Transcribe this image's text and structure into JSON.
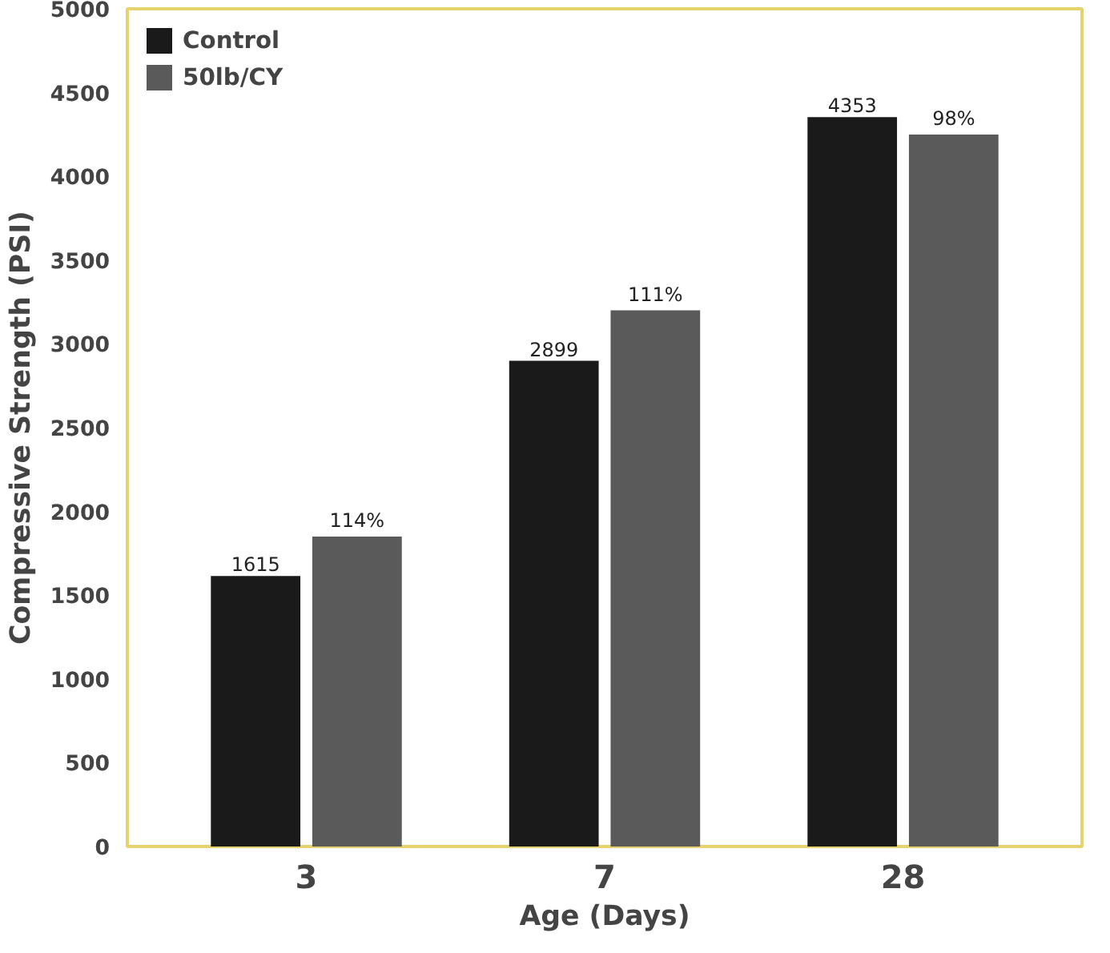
{
  "chart_data": {
    "type": "bar",
    "xlabel": "Age (Days)",
    "ylabel": "Compressive Strength (PSI)",
    "categories": [
      "3",
      "7",
      "28"
    ],
    "series": [
      {
        "name": "Control",
        "color": "#1a1a1a",
        "values": [
          1615,
          2899,
          4353
        ],
        "value_labels": [
          "1615",
          "2899",
          "4353"
        ]
      },
      {
        "name": "50lb/CY",
        "color": "#5a5a5a",
        "values": [
          1850,
          3200,
          4250
        ]
      }
    ],
    "annotations": [
      {
        "text": "114%",
        "x": "3",
        "y": 1850
      },
      {
        "text": "111%",
        "x": "7",
        "y": 3200
      },
      {
        "text": "98%",
        "x": "28",
        "y": 4250
      }
    ],
    "ylim": [
      0,
      5000
    ],
    "yticks": [
      0,
      500,
      1000,
      1500,
      2000,
      2500,
      3000,
      3500,
      4000,
      4500,
      5000
    ],
    "legend": "top left",
    "grid": false
  }
}
